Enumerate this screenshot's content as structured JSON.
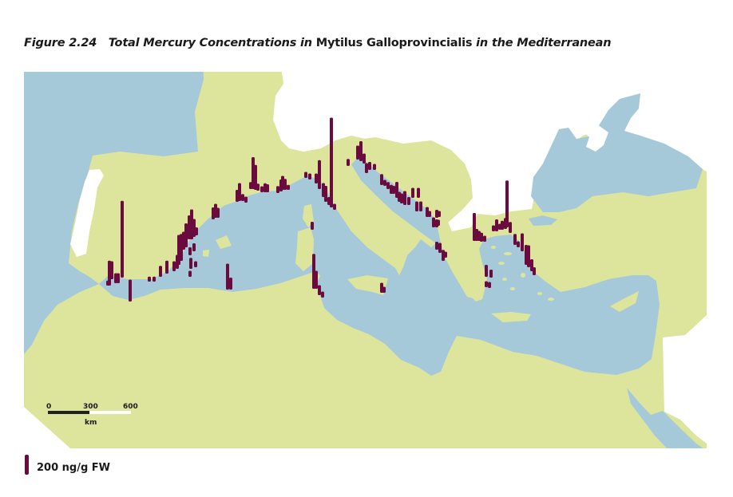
{
  "title": {
    "prefix": "Figure 2.24   Total Mercury Concentrations in ",
    "species": "Mytilus Galloprovincialis",
    "suffix": " in the Mediterranean"
  },
  "colors": {
    "sea": "#a6c9da",
    "land": "#dde59c",
    "outside": "#ffffff",
    "bar": "#6b0a3e"
  },
  "scale_bar": {
    "labels": [
      "0",
      "300",
      "600"
    ],
    "unit": "km"
  },
  "legend": {
    "label": "200 ng/g FW",
    "reference_value": 200,
    "unit": "ng/g FW"
  },
  "sites": {
    "values_ng_per_g_fw": [
      770,
      50,
      250,
      180,
      100,
      100,
      220,
      50,
      50,
      110,
      130,
      100,
      140,
      300,
      270,
      180,
      240,
      240,
      300,
      180,
      80,
      80,
      80,
      110,
      60,
      60,
      120,
      140,
      100,
      260,
      120,
      120,
      180,
      70,
      60,
      70,
      320,
      250,
      70,
      60,
      90,
      80,
      70,
      120,
      140,
      110,
      50,
      60,
      60,
      100,
      290,
      140,
      160,
      80,
      900,
      60,
      80,
      350,
      180,
      100,
      60,
      100,
      60,
      70,
      140,
      200,
      100,
      100,
      80,
      60,
      110,
      60,
      70,
      90,
      80,
      160,
      100,
      100,
      140,
      80,
      100,
      100,
      100,
      100,
      100,
      60,
      80,
      60,
      100,
      80,
      60,
      80,
      100,
      110,
      60,
      280,
      120,
      100,
      90,
      60,
      60,
      120,
      60,
      90,
      110,
      470,
      110,
      110,
      60,
      180,
      200,
      220,
      120,
      80,
      120,
      80,
      60,
      60
    ]
  }
}
